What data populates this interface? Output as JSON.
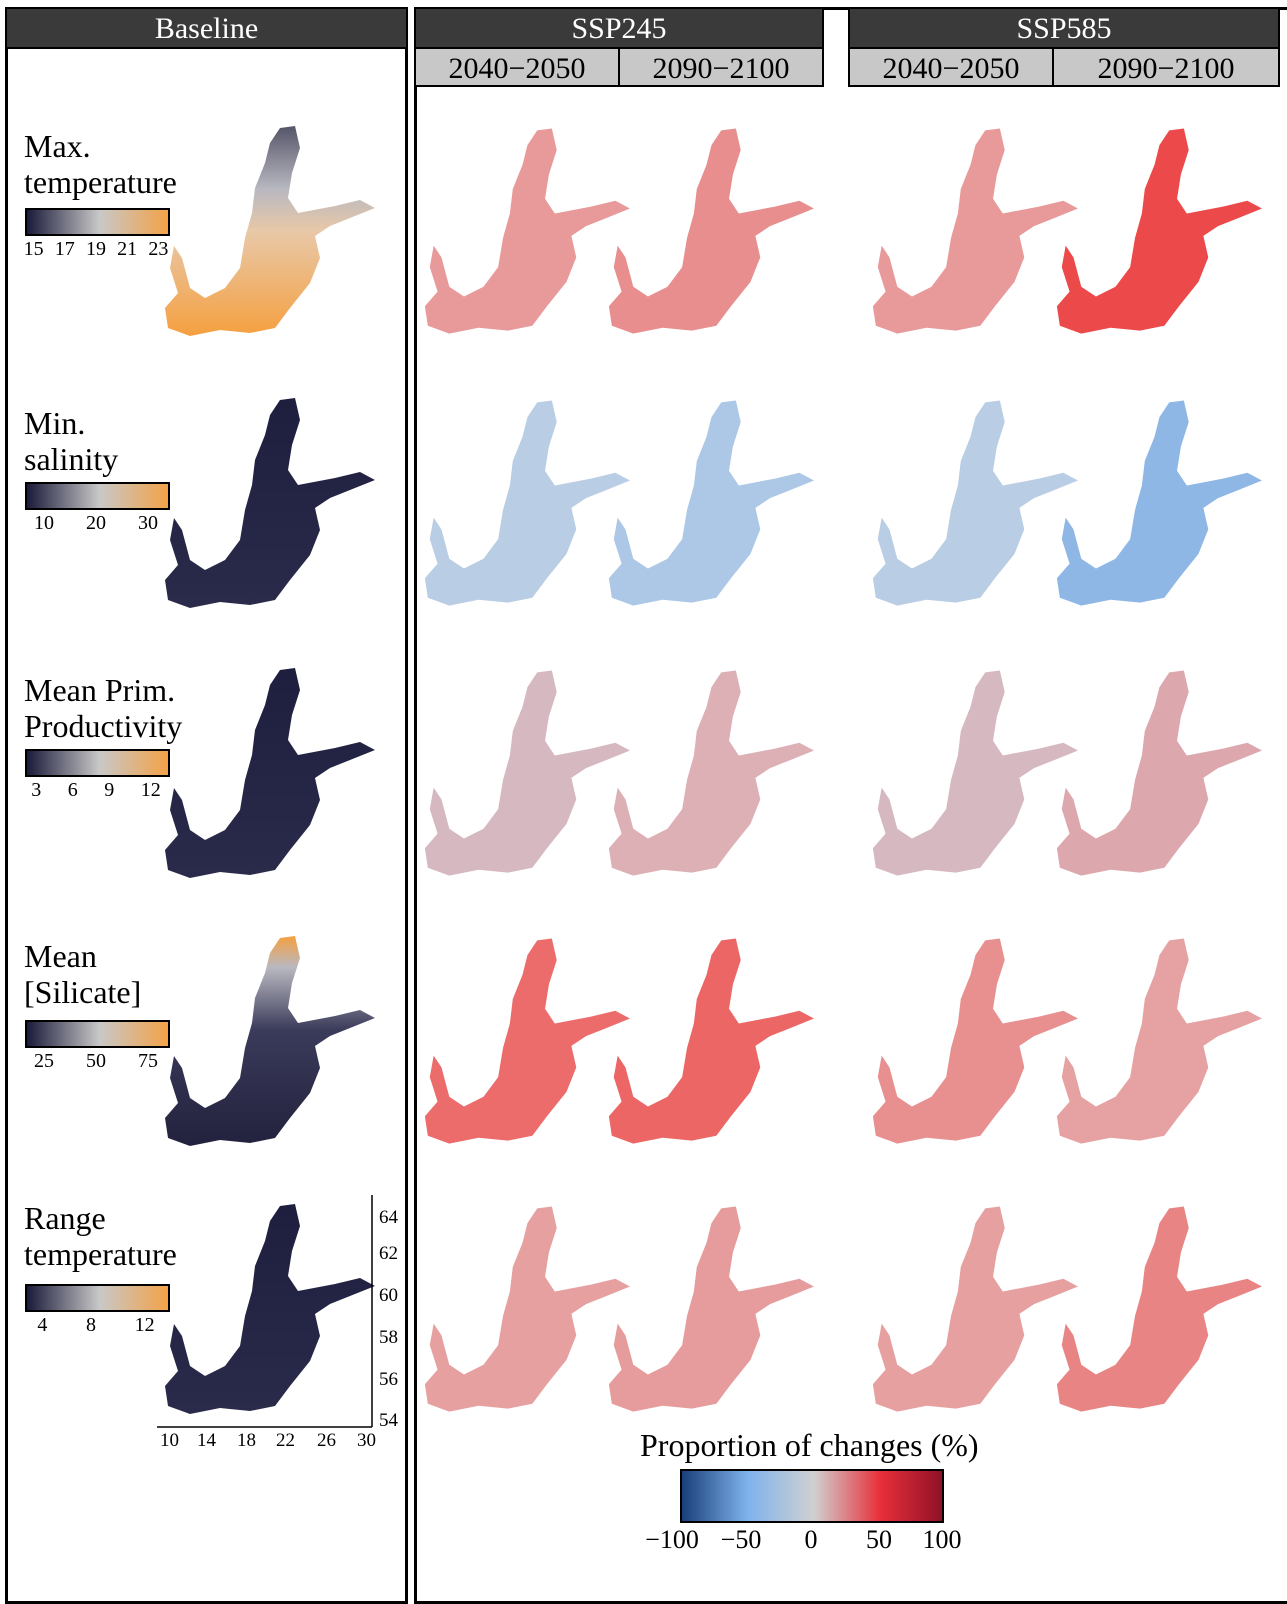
{
  "headers": {
    "baseline": "Baseline",
    "ssp245": "SSP245",
    "ssp585": "SSP585",
    "period1": "2040−2050",
    "period2": "2090−2100"
  },
  "rows": [
    {
      "label": "Max.\ntemperature",
      "ticks": [
        "15",
        "17",
        "19",
        "21",
        "23"
      ],
      "future_colors": [
        "#e89a9a",
        "#e98e8e",
        "#e89a9a",
        "#ec4a4a"
      ]
    },
    {
      "label": "Min.\nsalinity",
      "ticks": [
        "10",
        "20",
        "30"
      ],
      "future_colors": [
        "#b9cde4",
        "#adc8e6",
        "#b9cde4",
        "#8fb7e6"
      ]
    },
    {
      "label": "Mean Prim.\nProductivity",
      "ticks": [
        "3",
        "6",
        "9",
        "12"
      ],
      "future_colors": [
        "#d6b8c0",
        "#dcb0b5",
        "#d6b8c0",
        "#dca8ad"
      ]
    },
    {
      "label": "Mean\n[Silicate]",
      "ticks": [
        "25",
        "50",
        "75"
      ],
      "future_colors": [
        "#ec6c6c",
        "#ec6666",
        "#e89090",
        "#e6a2a2"
      ]
    },
    {
      "label": "Range\ntemperature",
      "ticks": [
        "4",
        "8",
        "12"
      ],
      "future_colors": [
        "#e6a0a0",
        "#e69c9c",
        "#e6a0a0",
        "#e88484"
      ]
    }
  ],
  "baseline_palette": {
    "dark": "#1a1a3a",
    "mid": "#c8c8c8",
    "high": "#f5a040"
  },
  "axes": {
    "lat_ticks": [
      "64",
      "62",
      "60",
      "58",
      "56",
      "54"
    ],
    "lon_ticks": [
      "10",
      "14",
      "18",
      "22",
      "26",
      "30"
    ]
  },
  "legend": {
    "title": "Proportion of changes (%)",
    "ticks": [
      "−100",
      "−50",
      "0",
      "50",
      "100"
    ],
    "colors": {
      "low": "#1a3f7a",
      "midlow": "#7fb3ec",
      "mid": "#d0d0d0",
      "midhigh": "#e8303a",
      "high": "#8a0f26"
    }
  }
}
